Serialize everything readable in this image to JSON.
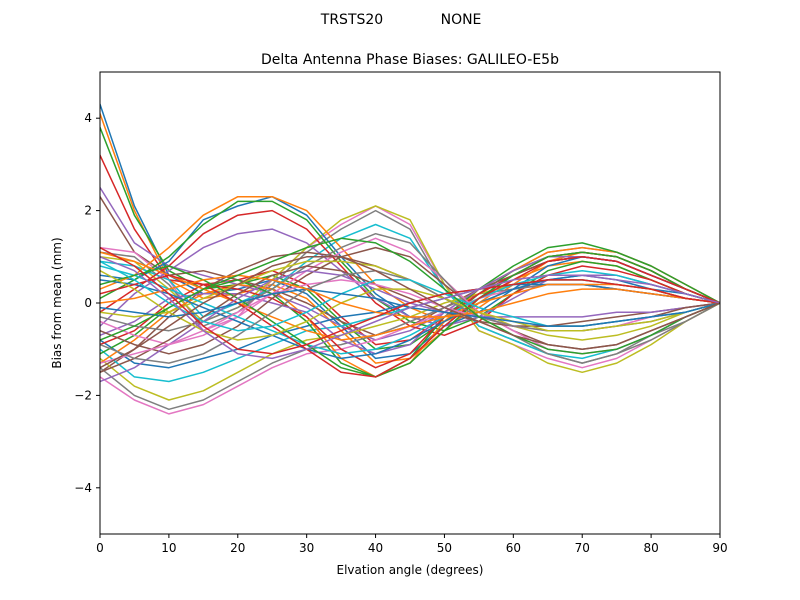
{
  "chart_data": {
    "type": "line",
    "suptitle_left": "TRSTS20",
    "suptitle_right": "NONE",
    "title": "Delta Antenna Phase Biases: GALILEO-E5b",
    "xlabel": "Elvation angle (degrees)",
    "ylabel": "Bias from mean (mm)",
    "xlim": [
      0,
      90
    ],
    "ylim": [
      -5,
      5
    ],
    "xticks": [
      "0",
      "10",
      "20",
      "30",
      "40",
      "50",
      "60",
      "70",
      "80",
      "90"
    ],
    "yticks": [
      "4",
      "2",
      "0",
      "−2",
      "−4"
    ],
    "grid": false,
    "legend": "none",
    "colors": [
      "#1f77b4",
      "#ff7f0e",
      "#2ca02c",
      "#d62728",
      "#9467bd",
      "#8c564b",
      "#e377c2",
      "#7f7f7f",
      "#bcbd22",
      "#17becf"
    ],
    "x": [
      0,
      5,
      10,
      15,
      20,
      25,
      30,
      35,
      40,
      45,
      50,
      55,
      60,
      65,
      70,
      75,
      80,
      85,
      90
    ],
    "series": [
      {
        "values": [
          4.3,
          2.1,
          0.6,
          0.2,
          0.3,
          0.5,
          0.2,
          -0.5,
          -1.2,
          -1.1,
          -0.5,
          0.1,
          0.6,
          0.9,
          1.0,
          0.9,
          0.6,
          0.3,
          0.0
        ]
      },
      {
        "values": [
          4.1,
          2.0,
          0.5,
          0.1,
          0.2,
          0.4,
          0.1,
          -0.6,
          -1.3,
          -1.2,
          -0.6,
          0.0,
          0.5,
          0.8,
          0.9,
          0.8,
          0.5,
          0.2,
          0.0
        ]
      },
      {
        "values": [
          3.8,
          1.9,
          0.7,
          0.3,
          0.4,
          0.6,
          0.3,
          -0.4,
          -1.0,
          -0.9,
          -0.4,
          0.2,
          0.7,
          1.0,
          1.1,
          1.0,
          0.7,
          0.3,
          0.0
        ]
      },
      {
        "values": [
          3.2,
          1.6,
          0.5,
          0.4,
          0.5,
          0.7,
          0.4,
          -0.3,
          -0.9,
          -0.8,
          -0.3,
          0.2,
          0.6,
          0.9,
          1.0,
          0.9,
          0.6,
          0.3,
          0.0
        ]
      },
      {
        "values": [
          2.5,
          1.3,
          0.8,
          0.6,
          0.4,
          0.2,
          -0.1,
          -0.5,
          -0.8,
          -0.6,
          -0.2,
          0.3,
          0.7,
          1.1,
          1.2,
          1.1,
          0.8,
          0.4,
          0.0
        ]
      },
      {
        "values": [
          2.3,
          1.1,
          0.6,
          0.7,
          0.5,
          0.3,
          0.0,
          -0.4,
          -0.7,
          -0.5,
          -0.1,
          0.3,
          0.6,
          0.9,
          1.0,
          0.9,
          0.6,
          0.3,
          0.0
        ]
      },
      {
        "values": [
          1.2,
          1.1,
          0.5,
          -0.6,
          -0.3,
          0.5,
          1.2,
          1.7,
          2.1,
          1.7,
          0.4,
          -0.6,
          -0.9,
          -1.2,
          -1.4,
          -1.2,
          -0.8,
          -0.4,
          0.0
        ]
      },
      {
        "values": [
          1.1,
          1.0,
          0.4,
          -0.5,
          -0.2,
          0.4,
          1.1,
          1.6,
          2.0,
          1.6,
          0.3,
          -0.5,
          -0.8,
          -1.1,
          -1.3,
          -1.1,
          -0.7,
          -0.4,
          0.0
        ]
      },
      {
        "values": [
          1.0,
          0.9,
          0.3,
          -0.4,
          -0.1,
          0.5,
          1.2,
          1.8,
          2.1,
          1.8,
          0.4,
          -0.6,
          -0.9,
          -1.3,
          -1.5,
          -1.3,
          -0.9,
          -0.4,
          0.0
        ]
      },
      {
        "values": [
          0.9,
          0.8,
          0.5,
          -0.3,
          0.0,
          0.3,
          0.9,
          1.4,
          1.7,
          1.4,
          0.3,
          -0.5,
          -0.8,
          -1.1,
          -1.2,
          -1.0,
          -0.7,
          -0.3,
          0.0
        ]
      },
      {
        "values": [
          0.6,
          0.5,
          0.9,
          1.8,
          2.1,
          2.3,
          1.9,
          1.0,
          0.2,
          -0.3,
          -0.5,
          -0.2,
          0.3,
          0.8,
          1.0,
          0.9,
          0.6,
          0.3,
          0.0
        ]
      },
      {
        "values": [
          0.3,
          0.6,
          1.2,
          1.9,
          2.3,
          2.3,
          2.0,
          1.2,
          0.4,
          -0.1,
          -0.4,
          -0.1,
          0.4,
          0.9,
          1.1,
          1.0,
          0.7,
          0.3,
          0.0
        ]
      },
      {
        "values": [
          0.1,
          0.5,
          1.0,
          1.7,
          2.2,
          2.2,
          1.8,
          0.9,
          0.1,
          -0.4,
          -0.6,
          -0.3,
          0.2,
          0.7,
          0.9,
          0.8,
          0.5,
          0.2,
          0.0
        ]
      },
      {
        "values": [
          -0.2,
          0.3,
          0.8,
          1.5,
          1.9,
          2.0,
          1.6,
          0.8,
          0.0,
          -0.5,
          -0.7,
          -0.4,
          0.2,
          0.6,
          0.8,
          0.7,
          0.5,
          0.2,
          0.0
        ]
      },
      {
        "values": [
          -0.5,
          0.2,
          0.7,
          1.2,
          1.5,
          1.6,
          1.3,
          0.7,
          0.1,
          -0.3,
          -0.5,
          -0.3,
          0.1,
          0.5,
          0.6,
          0.6,
          0.4,
          0.2,
          0.0
        ]
      },
      {
        "values": [
          -1.5,
          -1.0,
          -0.3,
          0.3,
          0.7,
          1.0,
          1.1,
          1.0,
          0.8,
          0.5,
          0.1,
          -0.3,
          -0.5,
          -0.5,
          -0.4,
          -0.3,
          -0.2,
          -0.1,
          0.0
        ]
      },
      {
        "values": [
          -1.6,
          -2.1,
          -2.4,
          -2.2,
          -1.8,
          -1.4,
          -1.1,
          -1.0,
          -0.8,
          -0.5,
          -0.2,
          0.1,
          0.3,
          0.4,
          0.4,
          0.3,
          0.2,
          0.1,
          0.0
        ]
      },
      {
        "values": [
          -1.4,
          -2.0,
          -2.3,
          -2.1,
          -1.7,
          -1.3,
          -1.0,
          -0.9,
          -0.7,
          -0.4,
          -0.1,
          0.2,
          0.3,
          0.4,
          0.4,
          0.3,
          0.2,
          0.1,
          0.0
        ]
      },
      {
        "values": [
          -1.2,
          -1.8,
          -2.1,
          -1.9,
          -1.5,
          -1.1,
          -0.8,
          -0.7,
          -0.5,
          -0.3,
          0.0,
          0.2,
          0.4,
          0.5,
          0.5,
          0.4,
          0.3,
          0.1,
          0.0
        ]
      },
      {
        "values": [
          -1.0,
          -1.6,
          -1.7,
          -1.5,
          -1.2,
          -0.9,
          -0.6,
          -0.5,
          -0.3,
          -0.1,
          0.1,
          0.3,
          0.4,
          0.5,
          0.5,
          0.4,
          0.3,
          0.1,
          0.0
        ]
      },
      {
        "values": [
          -0.8,
          -1.3,
          -1.4,
          -1.2,
          -1.0,
          -0.7,
          -0.5,
          -0.3,
          -0.2,
          0.0,
          0.2,
          0.3,
          0.4,
          0.4,
          0.4,
          0.3,
          0.2,
          0.1,
          0.0
        ]
      },
      {
        "values": [
          -1.3,
          -0.8,
          -0.2,
          0.2,
          0.4,
          0.3,
          -0.3,
          -1.2,
          -1.6,
          -1.3,
          -0.4,
          0.3,
          0.7,
          1.1,
          1.2,
          1.1,
          0.8,
          0.4,
          0.0
        ]
      },
      {
        "values": [
          -1.1,
          -0.7,
          -0.1,
          0.3,
          0.5,
          0.2,
          -0.4,
          -1.3,
          -1.6,
          -1.2,
          -0.3,
          0.3,
          0.8,
          1.2,
          1.3,
          1.1,
          0.8,
          0.4,
          0.0
        ]
      },
      {
        "values": [
          -0.9,
          -0.6,
          0.0,
          0.4,
          0.3,
          0.1,
          -0.3,
          -1.0,
          -1.4,
          -1.1,
          -0.3,
          0.2,
          0.6,
          1.0,
          1.1,
          1.0,
          0.7,
          0.3,
          0.0
        ]
      },
      {
        "values": [
          -0.7,
          -0.4,
          0.1,
          0.2,
          0.2,
          0.0,
          -0.2,
          -0.8,
          -1.1,
          -0.9,
          -0.2,
          0.3,
          0.7,
          1.0,
          1.0,
          0.9,
          0.6,
          0.3,
          0.0
        ]
      },
      {
        "values": [
          -0.6,
          -0.9,
          -1.1,
          -0.9,
          -0.5,
          0.1,
          0.6,
          1.0,
          1.2,
          1.0,
          0.4,
          -0.2,
          -0.6,
          -0.9,
          -1.0,
          -0.9,
          -0.6,
          -0.3,
          0.0
        ]
      },
      {
        "values": [
          -0.4,
          -0.7,
          -0.9,
          -0.7,
          -0.3,
          0.2,
          0.7,
          1.1,
          1.4,
          1.1,
          0.5,
          -0.2,
          -0.6,
          -1.0,
          -1.1,
          -1.0,
          -0.7,
          -0.3,
          0.0
        ]
      },
      {
        "values": [
          -0.3,
          -0.5,
          -0.6,
          -0.4,
          -0.1,
          0.3,
          0.8,
          1.2,
          1.5,
          1.3,
          0.5,
          -0.3,
          -0.7,
          -1.1,
          -1.3,
          -1.1,
          -0.8,
          -0.4,
          0.0
        ]
      },
      {
        "values": [
          -0.2,
          -0.3,
          -0.2,
          0.1,
          0.4,
          0.7,
          0.9,
          0.9,
          0.8,
          0.5,
          0.1,
          -0.2,
          -0.5,
          -0.7,
          -0.8,
          -0.7,
          -0.5,
          -0.2,
          0.0
        ]
      },
      {
        "values": [
          0.8,
          0.6,
          0.3,
          0.0,
          -0.3,
          -0.6,
          -0.9,
          -1.1,
          -1.0,
          -0.7,
          -0.3,
          0.1,
          0.4,
          0.6,
          0.7,
          0.6,
          0.4,
          0.2,
          0.0
        ]
      },
      {
        "values": [
          0.5,
          0.4,
          0.2,
          -0.1,
          -0.4,
          -0.7,
          -1.0,
          -1.2,
          -1.1,
          -0.8,
          -0.4,
          0.0,
          0.3,
          0.5,
          0.6,
          0.5,
          0.3,
          0.2,
          0.0
        ]
      },
      {
        "values": [
          1.1,
          0.9,
          0.6,
          0.3,
          0.0,
          -0.3,
          -0.6,
          -0.8,
          -0.7,
          -0.5,
          -0.3,
          0.0,
          0.2,
          0.4,
          0.4,
          0.4,
          0.3,
          0.1,
          0.0
        ]
      },
      {
        "values": [
          0.4,
          0.6,
          0.8,
          0.5,
          0.1,
          -0.4,
          -0.9,
          -1.4,
          -1.6,
          -1.3,
          -0.6,
          0.1,
          0.6,
          1.0,
          1.1,
          1.0,
          0.7,
          0.3,
          0.0
        ]
      },
      {
        "values": [
          0.2,
          0.4,
          0.6,
          0.4,
          0.0,
          -0.5,
          -1.0,
          -1.5,
          -1.6,
          -1.2,
          -0.5,
          0.1,
          0.5,
          0.9,
          1.0,
          0.9,
          0.6,
          0.3,
          0.0
        ]
      },
      {
        "values": [
          -1.7,
          -1.4,
          -0.9,
          -0.4,
          0.1,
          0.5,
          0.7,
          0.6,
          0.3,
          0.0,
          -0.2,
          -0.3,
          -0.3,
          -0.3,
          -0.3,
          -0.2,
          -0.2,
          -0.1,
          0.0
        ]
      },
      {
        "values": [
          -1.5,
          -1.2,
          -0.8,
          -0.3,
          0.2,
          0.6,
          0.8,
          0.7,
          0.4,
          0.1,
          -0.2,
          -0.4,
          -0.5,
          -0.5,
          -0.5,
          -0.4,
          -0.3,
          -0.1,
          0.0
        ]
      },
      {
        "values": [
          -1.3,
          -1.1,
          -0.9,
          -0.6,
          -0.2,
          0.2,
          0.4,
          0.5,
          0.4,
          0.2,
          -0.1,
          -0.3,
          -0.5,
          -0.6,
          -0.6,
          -0.5,
          -0.3,
          -0.2,
          0.0
        ]
      },
      {
        "values": [
          -0.9,
          -1.2,
          -1.3,
          -1.1,
          -0.7,
          -0.2,
          0.3,
          0.6,
          0.7,
          0.5,
          0.1,
          -0.3,
          -0.5,
          -0.6,
          -0.6,
          -0.5,
          -0.4,
          -0.2,
          0.0
        ]
      },
      {
        "values": [
          0.7,
          0.3,
          -0.2,
          -0.6,
          -0.8,
          -0.7,
          -0.4,
          0.0,
          0.3,
          0.3,
          0.1,
          -0.2,
          -0.4,
          -0.6,
          -0.6,
          -0.5,
          -0.4,
          -0.2,
          0.0
        ]
      },
      {
        "values": [
          0.9,
          0.5,
          0.0,
          -0.4,
          -0.6,
          -0.5,
          -0.2,
          0.2,
          0.5,
          0.5,
          0.2,
          -0.1,
          -0.3,
          -0.5,
          -0.5,
          -0.4,
          -0.3,
          -0.2,
          0.0
        ]
      },
      {
        "values": [
          -0.1,
          -0.2,
          -0.3,
          -0.2,
          0.0,
          0.2,
          0.3,
          0.2,
          0.1,
          -0.1,
          -0.2,
          -0.3,
          -0.4,
          -0.5,
          -0.5,
          -0.4,
          -0.3,
          -0.2,
          0.0
        ]
      },
      {
        "values": [
          0.0,
          0.1,
          0.3,
          0.5,
          0.6,
          0.5,
          0.3,
          0.0,
          -0.2,
          -0.3,
          -0.3,
          -0.2,
          0.0,
          0.2,
          0.3,
          0.3,
          0.2,
          0.1,
          0.0
        ]
      },
      {
        "values": [
          -0.8,
          -0.5,
          -0.1,
          0.3,
          0.6,
          0.9,
          1.2,
          1.4,
          1.3,
          0.9,
          0.3,
          -0.3,
          -0.7,
          -1.0,
          -1.1,
          -1.0,
          -0.7,
          -0.3,
          0.0
        ]
      },
      {
        "values": [
          1.2,
          0.8,
          0.2,
          -0.5,
          -1.0,
          -1.1,
          -0.9,
          -0.6,
          -0.3,
          0.0,
          0.2,
          0.3,
          0.4,
          0.5,
          0.5,
          0.4,
          0.3,
          0.1,
          0.0
        ]
      },
      {
        "values": [
          1.0,
          0.7,
          0.1,
          -0.6,
          -1.1,
          -1.2,
          -1.0,
          -0.7,
          -0.4,
          -0.1,
          0.1,
          0.3,
          0.5,
          0.6,
          0.6,
          0.5,
          0.4,
          0.2,
          0.0
        ]
      },
      {
        "values": [
          -1.4,
          -1.0,
          -0.5,
          0.0,
          0.4,
          0.8,
          1.0,
          1.0,
          0.7,
          0.3,
          -0.1,
          -0.4,
          -0.7,
          -0.9,
          -1.0,
          -0.9,
          -0.6,
          -0.3,
          0.0
        ]
      }
    ]
  }
}
